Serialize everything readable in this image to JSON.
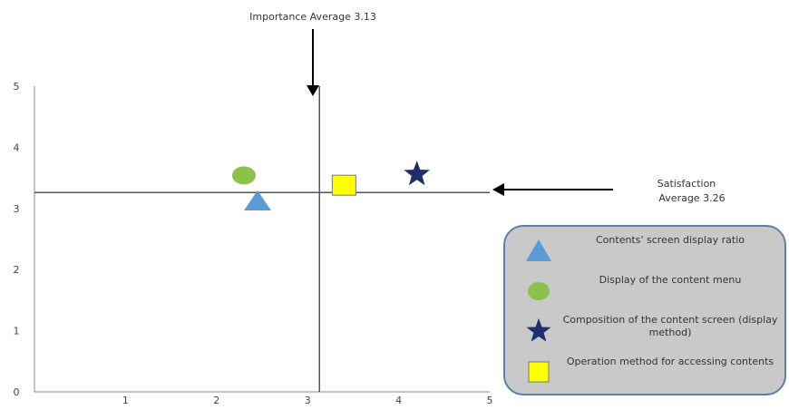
{
  "chart_data": {
    "type": "scatter",
    "title": "",
    "xlabel": "",
    "ylabel": "",
    "xlim": [
      0,
      5
    ],
    "ylim": [
      0,
      5
    ],
    "xticks": [
      "1",
      "2",
      "3",
      "4",
      "5"
    ],
    "yticks": [
      "0",
      "1",
      "2",
      "3",
      "4",
      "5"
    ],
    "grid": false,
    "legend_position": "bottom-right",
    "series": [
      {
        "name": "Contents' screen display ratio",
        "marker": "triangle",
        "color": "#5b9bd5",
        "x": 2.45,
        "y": 3.13
      },
      {
        "name": "Display of the content menu",
        "marker": "circle",
        "color": "#8dc24a",
        "x": 2.3,
        "y": 3.54
      },
      {
        "name": "Composition of the content screen (display method)",
        "marker": "star",
        "color": "#1f2f6e",
        "x": 4.2,
        "y": 3.56
      },
      {
        "name": "Operation method for accessing contents",
        "marker": "square",
        "color": "#ffff00",
        "x": 3.4,
        "y": 3.38
      }
    ],
    "reference_lines": {
      "importance_average": 3.13,
      "satisfaction_average": 3.26
    },
    "annotations": {
      "importance": "Importance Average 3.13",
      "satisfaction_line1": "Satisfaction",
      "satisfaction_line2": "Average 3.26"
    }
  },
  "legend": {
    "items": [
      {
        "label": "Contents' screen display ratio",
        "marker": "triangle"
      },
      {
        "label": "Display of the content menu",
        "marker": "circle"
      },
      {
        "label": "Composition of the content screen (display method)",
        "marker": "star"
      },
      {
        "label": "Operation method for accessing contents",
        "marker": "square"
      }
    ]
  }
}
